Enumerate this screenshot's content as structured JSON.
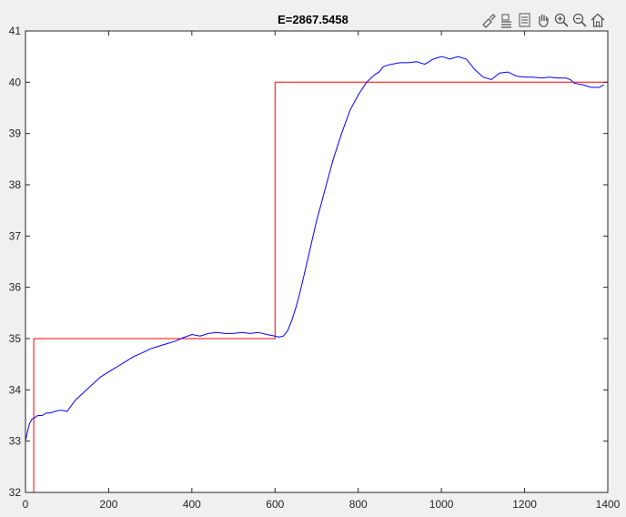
{
  "figure": {
    "title": "E=2867.5458",
    "toolbar_icons": [
      "brush-icon",
      "data-tips-icon",
      "legend-icon",
      "pan-icon",
      "zoom-in-icon",
      "zoom-out-icon",
      "home-icon"
    ]
  },
  "chart_data": {
    "type": "line",
    "title": "E=2867.5458",
    "xlabel": "",
    "ylabel": "",
    "xlim": [
      0,
      1400
    ],
    "ylim": [
      32,
      41
    ],
    "xticks": [
      0,
      200,
      400,
      600,
      800,
      1000,
      1200,
      1400
    ],
    "yticks": [
      32,
      33,
      34,
      35,
      36,
      37,
      38,
      39,
      40,
      41
    ],
    "grid": false,
    "series": [
      {
        "color": "#ff0000",
        "x": [
          0,
          20,
          20,
          600,
          600,
          1400
        ],
        "y": [
          32,
          32,
          35,
          35,
          40,
          40
        ]
      },
      {
        "color": "#0000ff",
        "x": [
          0,
          5,
          10,
          15,
          20,
          30,
          40,
          50,
          60,
          70,
          80,
          90,
          100,
          120,
          140,
          160,
          180,
          200,
          220,
          240,
          260,
          280,
          300,
          320,
          340,
          360,
          380,
          400,
          420,
          440,
          460,
          480,
          500,
          520,
          540,
          560,
          580,
          600,
          610,
          620,
          630,
          640,
          650,
          660,
          670,
          680,
          690,
          700,
          710,
          720,
          740,
          760,
          780,
          800,
          820,
          840,
          850,
          860,
          870,
          880,
          900,
          920,
          940,
          960,
          980,
          1000,
          1010,
          1020,
          1040,
          1060,
          1080,
          1100,
          1120,
          1140,
          1160,
          1180,
          1200,
          1220,
          1240,
          1260,
          1280,
          1300,
          1310,
          1320,
          1340,
          1360,
          1380,
          1390
        ],
        "y": [
          33.0,
          33.2,
          33.35,
          33.42,
          33.45,
          33.5,
          33.5,
          33.55,
          33.55,
          33.58,
          33.6,
          33.6,
          33.58,
          33.8,
          33.95,
          34.1,
          34.25,
          34.35,
          34.45,
          34.55,
          34.65,
          34.72,
          34.8,
          34.85,
          34.9,
          34.95,
          35.02,
          35.08,
          35.05,
          35.1,
          35.12,
          35.1,
          35.1,
          35.12,
          35.1,
          35.12,
          35.08,
          35.05,
          35.03,
          35.05,
          35.15,
          35.35,
          35.6,
          35.9,
          36.25,
          36.6,
          36.95,
          37.3,
          37.6,
          37.9,
          38.5,
          39.0,
          39.45,
          39.75,
          40.0,
          40.15,
          40.2,
          40.3,
          40.33,
          40.35,
          40.38,
          40.38,
          40.4,
          40.35,
          40.45,
          40.5,
          40.48,
          40.45,
          40.5,
          40.45,
          40.25,
          40.1,
          40.05,
          40.18,
          40.2,
          40.12,
          40.1,
          40.1,
          40.08,
          40.1,
          40.08,
          40.08,
          40.05,
          39.98,
          39.95,
          39.9,
          39.9,
          39.95
        ]
      }
    ]
  }
}
